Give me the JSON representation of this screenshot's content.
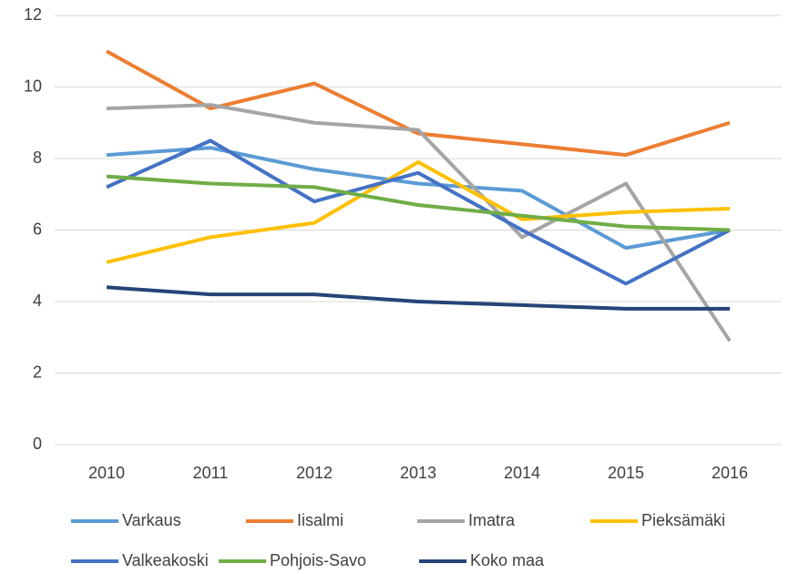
{
  "chart_data": {
    "type": "line",
    "categories": [
      "2010",
      "2011",
      "2012",
      "2013",
      "2014",
      "2015",
      "2016"
    ],
    "series": [
      {
        "name": "Varkaus",
        "color": "#5B9BD5",
        "values": [
          8.1,
          8.3,
          7.7,
          7.3,
          7.1,
          5.5,
          6.0
        ]
      },
      {
        "name": "Iisalmi",
        "color": "#ED7D31",
        "values": [
          11.0,
          9.4,
          10.1,
          8.7,
          8.4,
          8.1,
          9.0
        ]
      },
      {
        "name": "Imatra",
        "color": "#A5A5A5",
        "values": [
          9.4,
          9.5,
          9.0,
          8.8,
          5.8,
          7.3,
          2.9
        ]
      },
      {
        "name": "Pieksämäki",
        "color": "#FFC000",
        "values": [
          5.1,
          5.8,
          6.2,
          7.9,
          6.3,
          6.5,
          6.6
        ]
      },
      {
        "name": "Valkeakoski",
        "color": "#4472C4",
        "values": [
          7.2,
          8.5,
          6.8,
          7.6,
          6.0,
          4.5,
          6.0
        ]
      },
      {
        "name": "Pohjois-Savo",
        "color": "#70AD47",
        "values": [
          7.5,
          7.3,
          7.2,
          6.7,
          6.4,
          6.1,
          6.0
        ]
      },
      {
        "name": "Koko maa",
        "color": "#264478",
        "values": [
          4.4,
          4.2,
          4.2,
          4.0,
          3.9,
          3.8,
          3.8
        ]
      }
    ],
    "ylim": [
      0,
      12
    ],
    "yticks": [
      0,
      2,
      4,
      6,
      8,
      10,
      12
    ],
    "grid": true,
    "legend": "bottom"
  }
}
